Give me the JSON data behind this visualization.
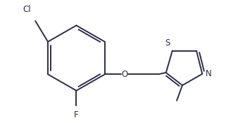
{
  "bg_color": "#ffffff",
  "line_color": "#2c2c4a",
  "font_size": 8.5,
  "line_width": 1.4,
  "figsize": [
    3.21,
    1.76
  ],
  "dpi": 100,
  "xlim": [
    0,
    321
  ],
  "ylim": [
    0,
    176
  ]
}
